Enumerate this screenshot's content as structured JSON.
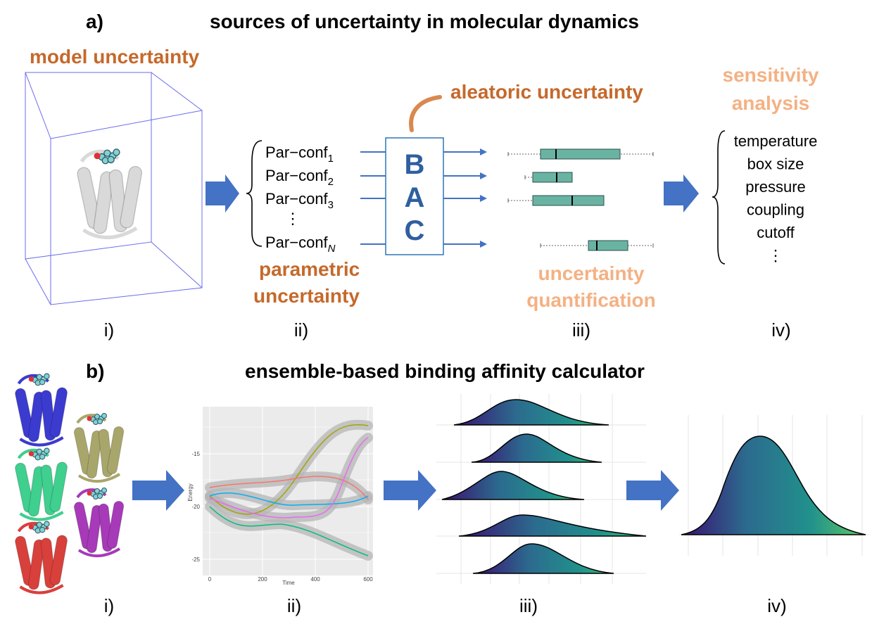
{
  "panel_a": {
    "label": "a)",
    "title": "sources of uncertainty in molecular dynamics",
    "model_uncertainty": "model uncertainty",
    "parameter_configurations": [
      {
        "text": "Par−conf",
        "subscript": "1"
      },
      {
        "text": "Par−conf",
        "subscript": "2"
      },
      {
        "text": "Par−conf",
        "subscript": "3"
      },
      {
        "text": "⋮"
      },
      {
        "text": "Par−conf",
        "subscript": "N"
      }
    ],
    "parametric_uncertainty": [
      "parametric",
      "uncertainty"
    ],
    "bac": [
      "B",
      "A",
      "C"
    ],
    "aleatoric_uncertainty": "aleatoric uncertainty",
    "uncertainty_quantification": [
      "uncertainty",
      "quantification"
    ],
    "sensitivity_analysis": [
      "sensitivity",
      "analysis"
    ],
    "parameters": [
      "temperature",
      "box size",
      "pressure",
      "coupling",
      "cutoff",
      "⋮"
    ],
    "steps": [
      "i)",
      "ii)",
      "iii)",
      "iv)"
    ]
  },
  "panel_b": {
    "label": "b)",
    "title": "ensemble-based binding affinity calculator",
    "plot": {
      "y_label": "Energy",
      "x_label": "Time",
      "yticks": [
        -15,
        -20,
        -25
      ],
      "xticks": [
        0,
        200,
        400,
        600
      ]
    },
    "steps": [
      "i)",
      "ii)",
      "iii)",
      "iv)"
    ]
  }
}
